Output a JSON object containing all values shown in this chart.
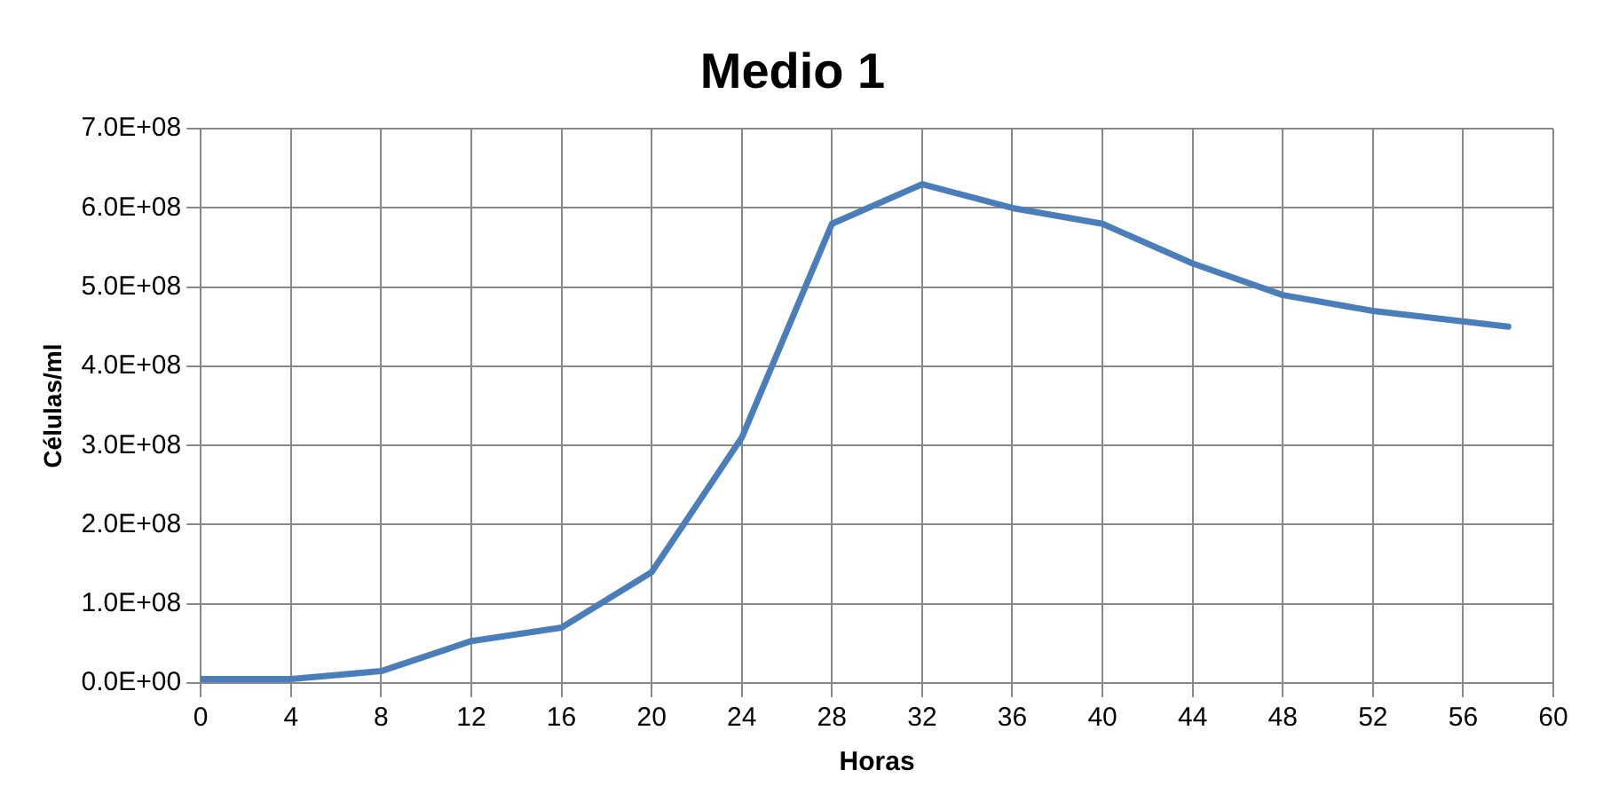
{
  "chart_data": {
    "type": "line",
    "title": "Medio 1",
    "xlabel": "Horas",
    "ylabel": "Células/ml",
    "x": [
      0,
      4,
      8,
      12,
      16,
      20,
      24,
      28,
      32,
      36,
      40,
      44,
      48,
      52,
      58
    ],
    "series": [
      {
        "color": "#4a7ebb",
        "values": [
          5000000,
          5000000,
          15000000,
          53000000,
          70000000,
          140000000,
          310000000,
          580000000,
          630000000,
          600000000,
          580000000,
          530000000,
          490000000,
          470000000,
          450000000
        ]
      }
    ],
    "xlim": [
      0,
      60
    ],
    "xticks": [
      0,
      4,
      8,
      12,
      16,
      20,
      24,
      28,
      32,
      36,
      40,
      44,
      48,
      52,
      56,
      60
    ],
    "ylim": [
      0,
      700000000
    ],
    "yticks": [
      {
        "value": 0,
        "label": "0.0E+00"
      },
      {
        "value": 100000000,
        "label": "1.0E+08"
      },
      {
        "value": 200000000,
        "label": "2.0E+08"
      },
      {
        "value": 300000000,
        "label": "3.0E+08"
      },
      {
        "value": 400000000,
        "label": "4.0E+08"
      },
      {
        "value": 500000000,
        "label": "5.0E+08"
      },
      {
        "value": 600000000,
        "label": "6.0E+08"
      },
      {
        "value": 700000000,
        "label": "7.0E+08"
      }
    ],
    "grid": true,
    "legend": false,
    "marker": "none",
    "line_style": "solid"
  }
}
